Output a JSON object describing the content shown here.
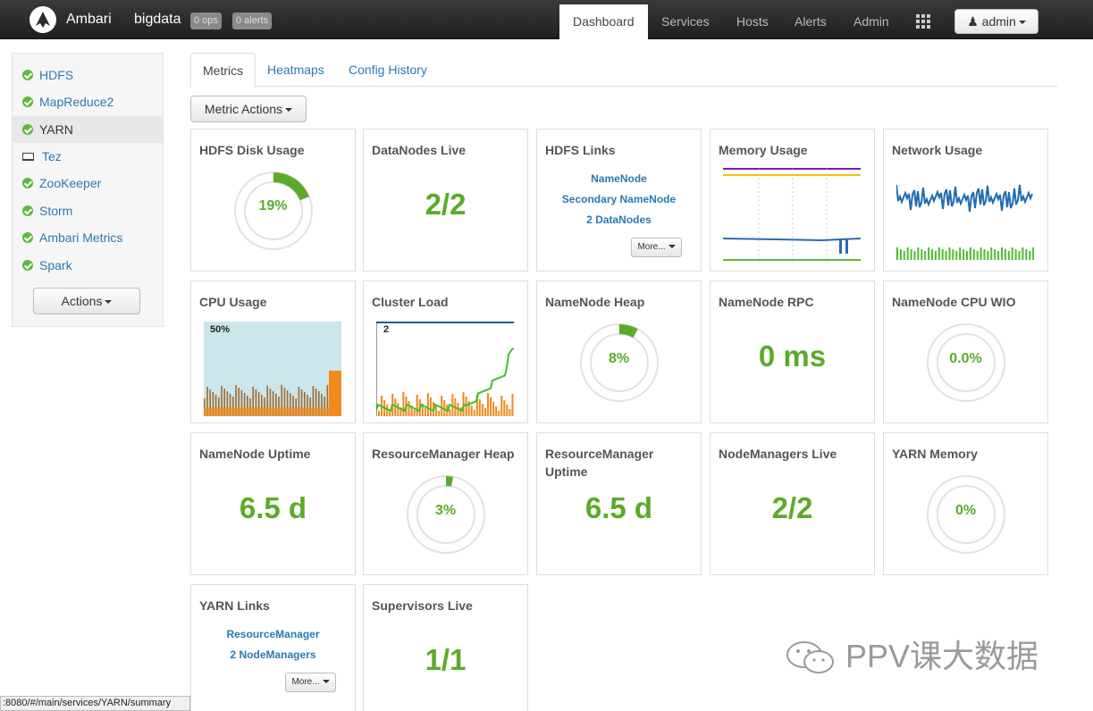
{
  "topbar": {
    "brand": "Ambari",
    "cluster": "bigdata",
    "ops_badge": "0 ops",
    "alerts_badge": "0 alerts",
    "nav": [
      "Dashboard",
      "Services",
      "Hosts",
      "Alerts",
      "Admin"
    ],
    "user": "admin"
  },
  "sidebar": {
    "services": [
      {
        "label": "HDFS",
        "icon": "check-circle-icon"
      },
      {
        "label": "MapReduce2",
        "icon": "check-circle-icon"
      },
      {
        "label": "YARN",
        "icon": "check-circle-icon"
      },
      {
        "label": "Tez",
        "icon": "laptop-icon"
      },
      {
        "label": "ZooKeeper",
        "icon": "check-circle-icon"
      },
      {
        "label": "Storm",
        "icon": "check-circle-icon"
      },
      {
        "label": "Ambari Metrics",
        "icon": "check-circle-icon"
      },
      {
        "label": "Spark",
        "icon": "check-circle-icon"
      }
    ],
    "actions_label": "Actions"
  },
  "tabs": [
    "Metrics",
    "Heatmaps",
    "Config History"
  ],
  "metric_actions": "Metric Actions",
  "widgets": {
    "hdfs_disk": {
      "title": "HDFS Disk Usage",
      "value": "19%",
      "fraction": 0.19
    },
    "datanodes": {
      "title": "DataNodes Live",
      "value": "2/2"
    },
    "hdfs_links": {
      "title": "HDFS Links",
      "links": [
        "NameNode",
        "Secondary NameNode",
        "2 DataNodes"
      ],
      "more": "More..."
    },
    "memory": {
      "title": "Memory Usage"
    },
    "network": {
      "title": "Network Usage"
    },
    "cpu": {
      "title": "CPU Usage",
      "label": "50%"
    },
    "cluster_load": {
      "title": "Cluster Load",
      "label": "2"
    },
    "nn_heap": {
      "title": "NameNode Heap",
      "value": "8%",
      "fraction": 0.08
    },
    "nn_rpc": {
      "title": "NameNode RPC",
      "value": "0 ms"
    },
    "nn_cpu": {
      "title": "NameNode CPU WIO",
      "value": "0.0%",
      "fraction": 0.0
    },
    "nn_uptime": {
      "title": "NameNode Uptime",
      "value": "6.5 d"
    },
    "rm_heap": {
      "title": "ResourceManager Heap",
      "value": "3%",
      "fraction": 0.03
    },
    "rm_uptime": {
      "title": "ResourceManager Uptime",
      "value": "6.5 d"
    },
    "nm_live": {
      "title": "NodeManagers Live",
      "value": "2/2"
    },
    "yarn_mem": {
      "title": "YARN Memory",
      "value": "0%",
      "fraction": 0.0
    },
    "yarn_links": {
      "title": "YARN Links",
      "links": [
        "ResourceManager",
        "2 NodeManagers"
      ],
      "more": "More..."
    },
    "supervisors": {
      "title": "Supervisors Live",
      "value": "1/1"
    }
  },
  "statusbar": ":8080/#/main/services/YARN/summary",
  "watermark": "PPV课大数据",
  "colors": {
    "accent": "#5aab29",
    "link": "#2a7ab0",
    "navbar": "#2b2b2b"
  }
}
